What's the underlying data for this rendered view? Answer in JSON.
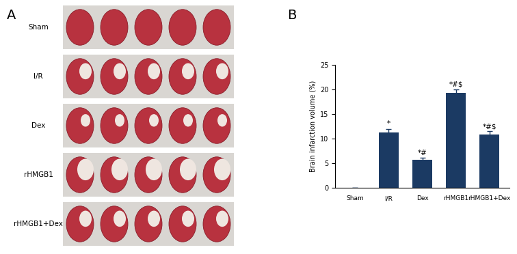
{
  "panel_labels": [
    "A",
    "B"
  ],
  "photo_panel": {
    "row_labels": [
      "Sham",
      "I/R",
      "Dex",
      "rHMGB1",
      "rHMGB1+Dex"
    ]
  },
  "chart_data": {
    "type": "bar",
    "categories": [
      "Sham",
      "I/R",
      "Dex",
      "rHMGB1",
      "rHMGB1+Dex"
    ],
    "values": [
      0,
      11.2,
      5.7,
      19.3,
      10.9
    ],
    "errors": [
      0,
      0.8,
      0.4,
      0.7,
      0.6
    ],
    "annotations": [
      null,
      "*",
      "*#",
      "*#$",
      "*#$"
    ],
    "y_label": "Brain infarction volume (%)",
    "color": "#1b3a63",
    "ylim": [
      0,
      25
    ],
    "yticks": [
      0,
      5,
      10,
      15,
      20,
      25
    ],
    "grid": false
  }
}
